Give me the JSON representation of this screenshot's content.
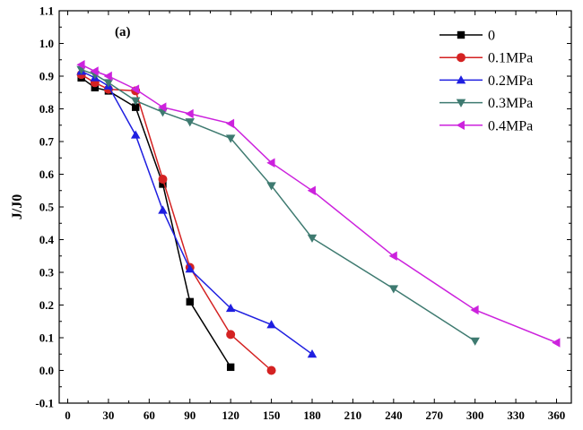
{
  "chart_data": {
    "type": "line",
    "panel_label": "(a)",
    "xlabel": "",
    "ylabel": "J/J0",
    "xlim": [
      0,
      370
    ],
    "ylim": [
      -0.1,
      1.1
    ],
    "xticks": [
      0,
      30,
      60,
      90,
      120,
      150,
      180,
      210,
      240,
      270,
      300,
      330,
      360
    ],
    "yticks": [
      -0.1,
      0.0,
      0.1,
      0.2,
      0.3,
      0.4,
      0.5,
      0.6,
      0.7,
      0.8,
      0.9,
      1.0,
      1.1
    ],
    "ytick_labels": [
      "-0.1",
      "0.0",
      "0.1",
      "0.2",
      "0.3",
      "0.4",
      "0.5",
      "0.6",
      "0.7",
      "0.8",
      "0.9",
      "1.0",
      "1.1"
    ],
    "legend_position": "top-right",
    "series": [
      {
        "name": "0",
        "color": "#000000",
        "marker": "square",
        "x": [
          10,
          20,
          30,
          50,
          70,
          90,
          120
        ],
        "y": [
          0.895,
          0.865,
          0.855,
          0.805,
          0.57,
          0.21,
          0.01
        ]
      },
      {
        "name": "0.1MPa",
        "color": "#d42222",
        "marker": "circle",
        "x": [
          10,
          20,
          30,
          50,
          70,
          90,
          120,
          150
        ],
        "y": [
          0.905,
          0.88,
          0.86,
          0.855,
          0.585,
          0.315,
          0.11,
          0.0
        ]
      },
      {
        "name": "0.2MPa",
        "color": "#1f1fe0",
        "marker": "triangle-up",
        "x": [
          10,
          20,
          30,
          50,
          70,
          90,
          120,
          150,
          180
        ],
        "y": [
          0.915,
          0.895,
          0.87,
          0.72,
          0.49,
          0.31,
          0.19,
          0.14,
          0.05
        ]
      },
      {
        "name": "0.3MPa",
        "color": "#3e7a70",
        "marker": "triangle-down",
        "x": [
          10,
          20,
          30,
          50,
          70,
          90,
          120,
          150,
          180,
          240,
          300
        ],
        "y": [
          0.92,
          0.905,
          0.88,
          0.825,
          0.79,
          0.76,
          0.71,
          0.565,
          0.405,
          0.25,
          0.09
        ]
      },
      {
        "name": "0.4MPa",
        "color": "#cc22dd",
        "marker": "triangle-left",
        "x": [
          10,
          20,
          30,
          50,
          70,
          90,
          120,
          150,
          180,
          240,
          300,
          360
        ],
        "y": [
          0.935,
          0.915,
          0.9,
          0.86,
          0.805,
          0.785,
          0.755,
          0.635,
          0.55,
          0.35,
          0.185,
          0.085
        ]
      }
    ]
  }
}
